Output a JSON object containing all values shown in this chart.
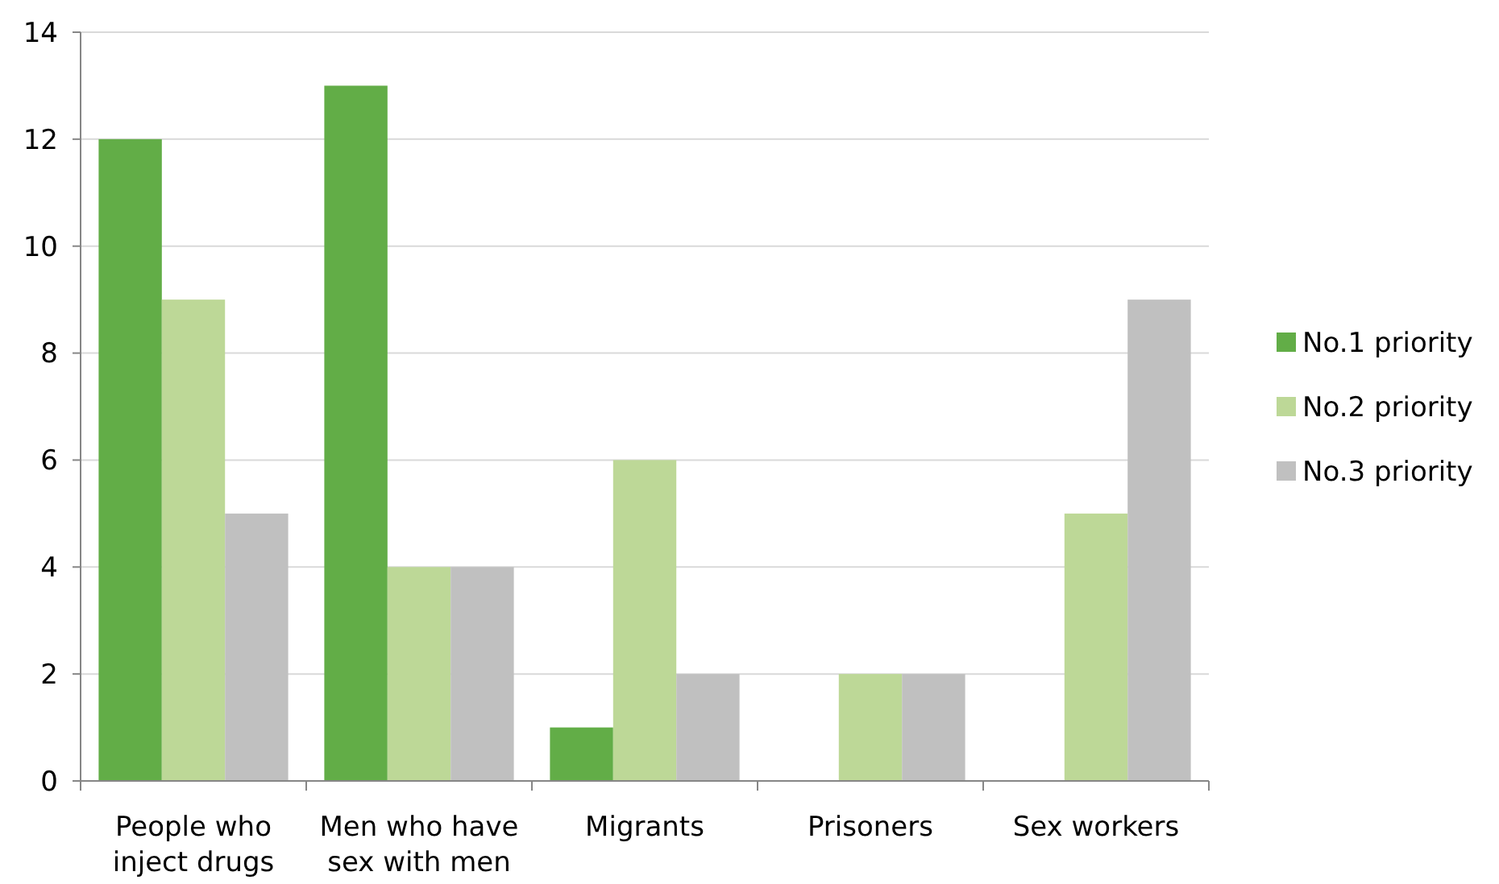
{
  "chart_data": {
    "type": "bar",
    "categories": [
      "People who inject drugs",
      "Men who have sex with men",
      "Migrants",
      "Prisoners",
      "Sex workers"
    ],
    "series": [
      {
        "name": "No.1 priority",
        "color": "#62ad47",
        "values": [
          12,
          13,
          1,
          0,
          0
        ]
      },
      {
        "name": "No.2 priority",
        "color": "#bdd897",
        "values": [
          9,
          4,
          6,
          2,
          5
        ]
      },
      {
        "name": "No.3 priority",
        "color": "#c0c0c0",
        "values": [
          5,
          4,
          2,
          2,
          9
        ]
      }
    ],
    "ylim": [
      0,
      14
    ],
    "yticks": [
      0,
      2,
      4,
      6,
      8,
      10,
      12,
      14
    ],
    "grid": "y",
    "legend": "right"
  }
}
